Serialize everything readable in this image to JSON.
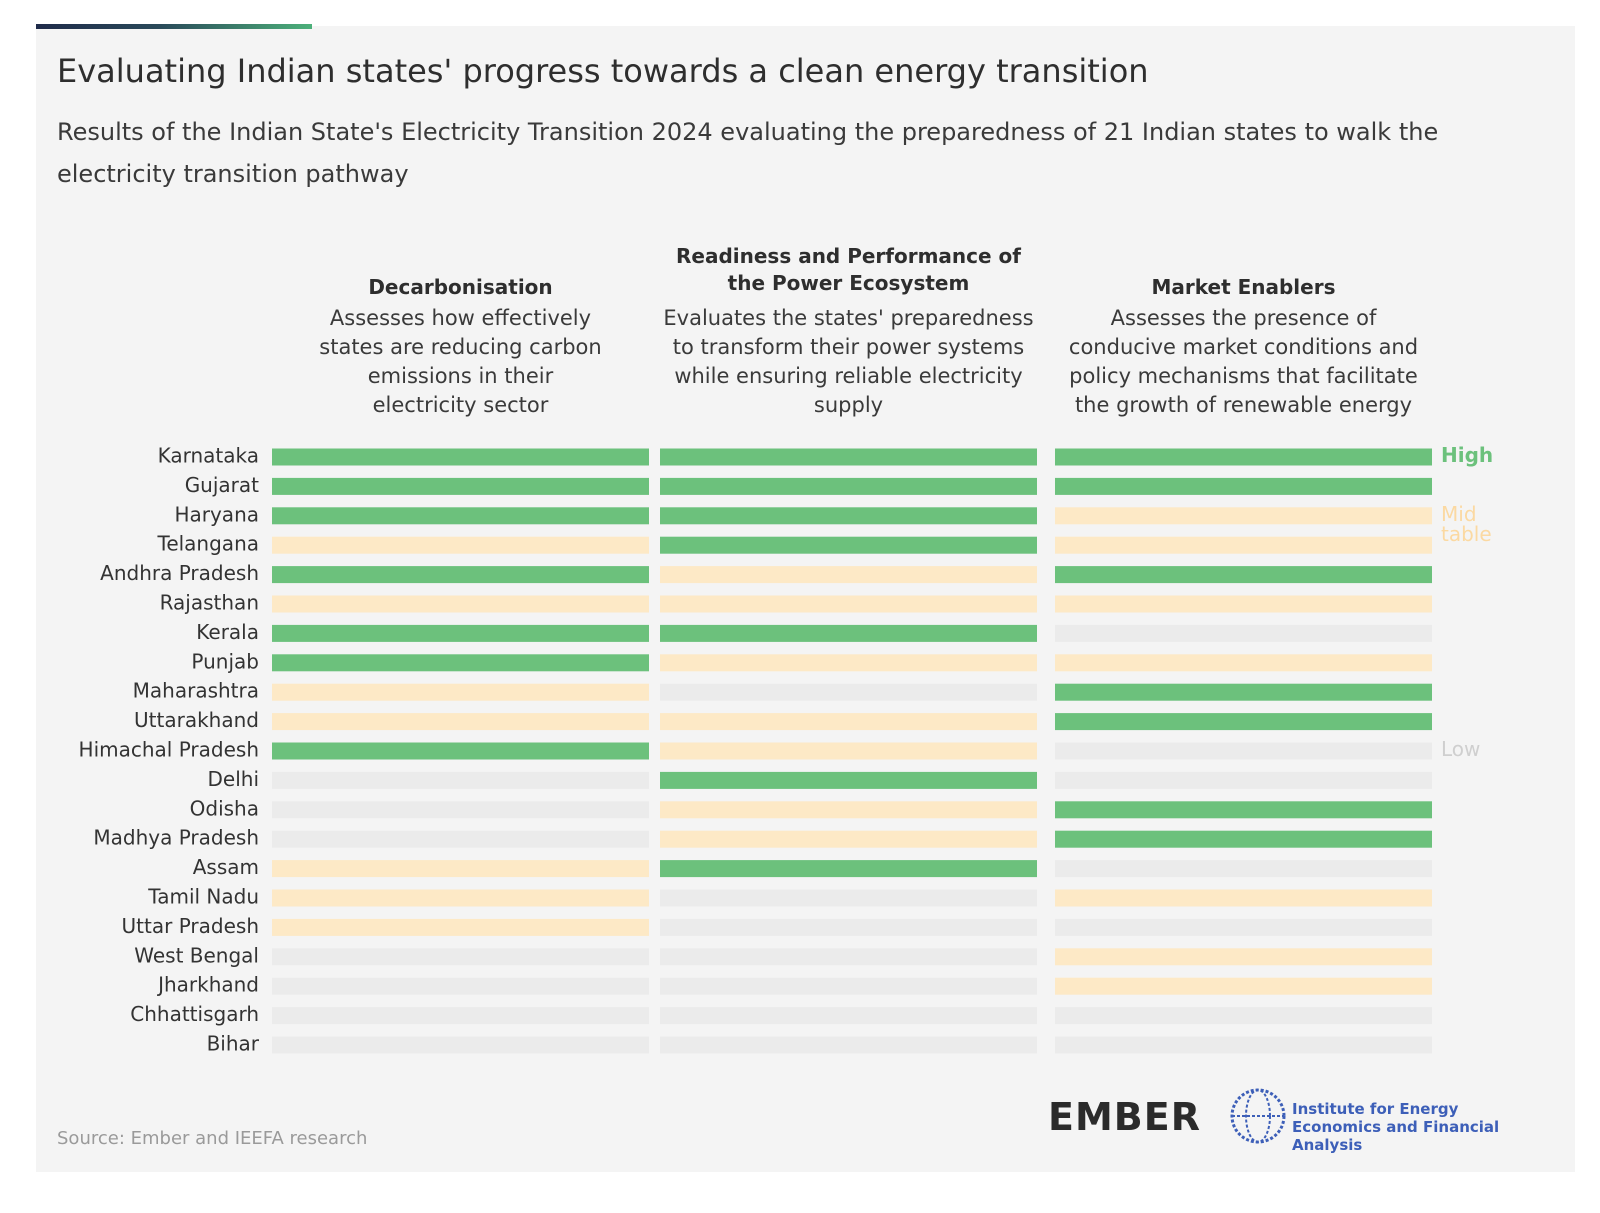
{
  "header": {
    "title": "Evaluating Indian states' progress towards a clean energy transition",
    "subtitle": "Results of the Indian State's Electricity Transition 2024 evaluating the preparedness of 21 Indian states to walk the electricity transition pathway"
  },
  "columns": [
    {
      "title": "Decarbonisation",
      "description": "Assesses how effectively states are reducing carbon emissions in their electricity sector"
    },
    {
      "title": "Readiness and Performance of the Power Ecosystem",
      "description": "Evaluates the states' preparedness to transform their power systems while ensuring reliable electricity supply"
    },
    {
      "title": "Market Enablers",
      "description": "Assesses the presence of conducive market conditions and policy mechanisms that facilitate the growth of renewable energy"
    }
  ],
  "legend": [
    {
      "label": "High",
      "color": "#6cc17c",
      "text_color": "#6cc17c"
    },
    {
      "label": "Mid table",
      "color": "#fde9c6",
      "text_color": "#fbd9a2"
    },
    {
      "label": "Low",
      "color": "#ebebeb",
      "text_color": "#cfcfcf"
    }
  ],
  "states": [
    {
      "name": "Karnataka",
      "ratings": [
        "High",
        "High",
        "High"
      ]
    },
    {
      "name": "Gujarat",
      "ratings": [
        "High",
        "High",
        "High"
      ]
    },
    {
      "name": "Haryana",
      "ratings": [
        "High",
        "High",
        "Mid table"
      ]
    },
    {
      "name": "Telangana",
      "ratings": [
        "Mid table",
        "High",
        "Mid table"
      ]
    },
    {
      "name": "Andhra Pradesh",
      "ratings": [
        "High",
        "Mid table",
        "High"
      ]
    },
    {
      "name": "Rajasthan",
      "ratings": [
        "Mid table",
        "Mid table",
        "Mid table"
      ]
    },
    {
      "name": "Kerala",
      "ratings": [
        "High",
        "High",
        "Low"
      ]
    },
    {
      "name": "Punjab",
      "ratings": [
        "High",
        "Mid table",
        "Mid table"
      ]
    },
    {
      "name": "Maharashtra",
      "ratings": [
        "Mid table",
        "Low",
        "High"
      ]
    },
    {
      "name": "Uttarakhand",
      "ratings": [
        "Mid table",
        "Mid table",
        "High"
      ]
    },
    {
      "name": "Himachal Pradesh",
      "ratings": [
        "High",
        "Mid table",
        "Low"
      ]
    },
    {
      "name": "Delhi",
      "ratings": [
        "Low",
        "High",
        "Low"
      ]
    },
    {
      "name": "Odisha",
      "ratings": [
        "Low",
        "Mid table",
        "High"
      ]
    },
    {
      "name": "Madhya Pradesh",
      "ratings": [
        "Low",
        "Mid table",
        "High"
      ]
    },
    {
      "name": "Assam",
      "ratings": [
        "Mid table",
        "High",
        "Low"
      ]
    },
    {
      "name": "Tamil Nadu",
      "ratings": [
        "Mid table",
        "Low",
        "Mid table"
      ]
    },
    {
      "name": "Uttar Pradesh",
      "ratings": [
        "Mid table",
        "Low",
        "Low"
      ]
    },
    {
      "name": "West Bengal",
      "ratings": [
        "Low",
        "Low",
        "Mid table"
      ]
    },
    {
      "name": "Jharkhand",
      "ratings": [
        "Low",
        "Low",
        "Mid table"
      ]
    },
    {
      "name": "Chhattisgarh",
      "ratings": [
        "Low",
        "Low",
        "Low"
      ]
    },
    {
      "name": "Bihar",
      "ratings": [
        "Low",
        "Low",
        "Low"
      ]
    }
  ],
  "footer": {
    "source": "Source: Ember and IEEFA research"
  },
  "logos": {
    "ember": "EMBER",
    "ieefa": "Institute for Energy Economics and Financial Analysis"
  }
}
